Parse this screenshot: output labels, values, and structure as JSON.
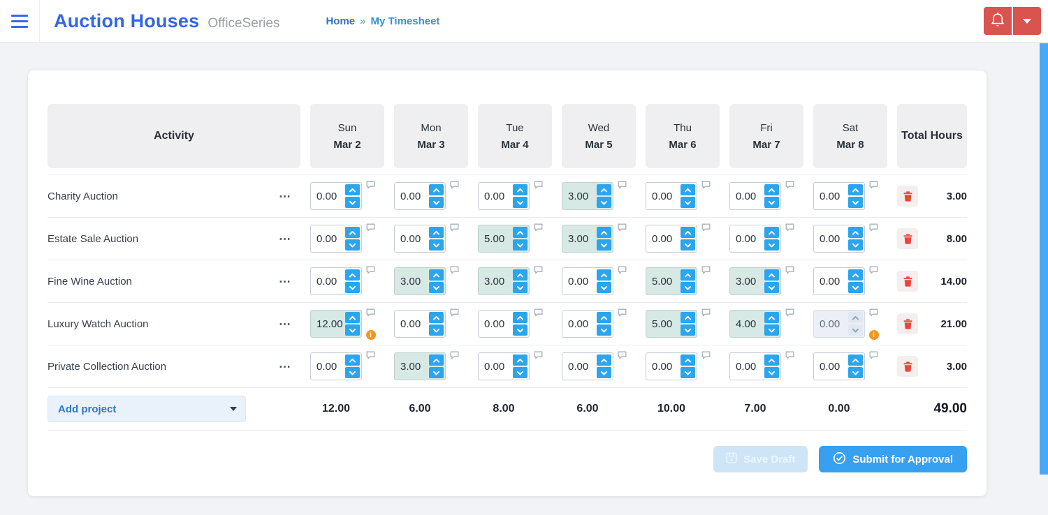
{
  "header": {
    "app_title": "Auction Houses",
    "app_subtitle": "OfficeSeries",
    "breadcrumb": {
      "home": "Home",
      "separator": "»",
      "current": "My Timesheet"
    }
  },
  "icons": {
    "row_menu_glyph": "⋯",
    "hamburger": "menu-bars",
    "bell": "notification-bell",
    "caret": "dropdown-caret",
    "comment": "speech-bubble",
    "info_glyph": "i",
    "trash": "trash-can",
    "save": "floppy-disk",
    "submit": "check-circle"
  },
  "colors": {
    "brand_blue": "#3166e5",
    "breadcrumb_blue": "#2d93d8",
    "danger_red": "#d9534f",
    "spinner_blue": "#2ba6ee",
    "highlight_cell": "#d7e9e5",
    "disabled_cell": "#ecf0f6",
    "info_orange": "#f7941e",
    "trash_red": "#e8463d",
    "submit_blue": "#38a0f0",
    "save_disabled_blue": "#cde5f7",
    "scrollbar_blue": "#47a9f5",
    "page_bg": "#f1f3f6"
  },
  "timesheet": {
    "columns": {
      "activity_label": "Activity",
      "total_label": "Total Hours",
      "days": [
        {
          "name": "Sun",
          "date": "Mar 2"
        },
        {
          "name": "Mon",
          "date": "Mar 3"
        },
        {
          "name": "Tue",
          "date": "Mar 4"
        },
        {
          "name": "Wed",
          "date": "Mar 5"
        },
        {
          "name": "Thu",
          "date": "Mar 6"
        },
        {
          "name": "Fri",
          "date": "Mar 7"
        },
        {
          "name": "Sat",
          "date": "Mar 8"
        }
      ]
    },
    "rows": [
      {
        "activity": "Charity Auction",
        "total": "3.00",
        "cells": [
          {
            "value": "0.00"
          },
          {
            "value": "0.00"
          },
          {
            "value": "0.00"
          },
          {
            "value": "3.00",
            "highlighted": true
          },
          {
            "value": "0.00"
          },
          {
            "value": "0.00"
          },
          {
            "value": "0.00"
          }
        ]
      },
      {
        "activity": "Estate Sale Auction",
        "total": "8.00",
        "cells": [
          {
            "value": "0.00"
          },
          {
            "value": "0.00"
          },
          {
            "value": "5.00",
            "highlighted": true
          },
          {
            "value": "3.00",
            "highlighted": true
          },
          {
            "value": "0.00"
          },
          {
            "value": "0.00"
          },
          {
            "value": "0.00"
          }
        ]
      },
      {
        "activity": "Fine Wine Auction",
        "total": "14.00",
        "cells": [
          {
            "value": "0.00"
          },
          {
            "value": "3.00",
            "highlighted": true
          },
          {
            "value": "3.00",
            "highlighted": true
          },
          {
            "value": "0.00"
          },
          {
            "value": "5.00",
            "highlighted": true
          },
          {
            "value": "3.00",
            "highlighted": true
          },
          {
            "value": "0.00"
          }
        ]
      },
      {
        "activity": "Luxury Watch Auction",
        "total": "21.00",
        "cells": [
          {
            "value": "12.00",
            "highlighted": true,
            "info": true
          },
          {
            "value": "0.00"
          },
          {
            "value": "0.00"
          },
          {
            "value": "0.00"
          },
          {
            "value": "5.00",
            "highlighted": true
          },
          {
            "value": "4.00",
            "highlighted": true
          },
          {
            "value": "0.00",
            "disabled": true,
            "info": true
          }
        ]
      },
      {
        "activity": "Private Collection Auction",
        "total": "3.00",
        "cells": [
          {
            "value": "0.00"
          },
          {
            "value": "3.00",
            "highlighted": true
          },
          {
            "value": "0.00"
          },
          {
            "value": "0.00"
          },
          {
            "value": "0.00"
          },
          {
            "value": "0.00"
          },
          {
            "value": "0.00"
          }
        ]
      }
    ],
    "footer": {
      "add_project_label": "Add project",
      "day_totals": [
        "12.00",
        "6.00",
        "8.00",
        "6.00",
        "10.00",
        "7.00",
        "0.00"
      ],
      "grand_total": "49.00"
    },
    "actions": {
      "save_draft_label": "Save Draft",
      "submit_label": "Submit for Approval"
    }
  }
}
